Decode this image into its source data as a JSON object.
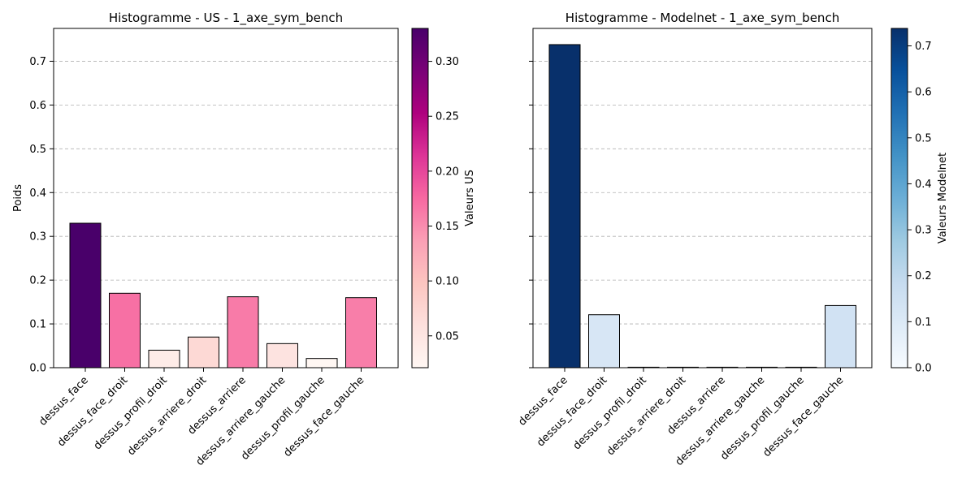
{
  "chart_data": [
    {
      "type": "bar",
      "title": "Histogramme - US - 1_axe_sym_bench",
      "ylabel": "Poids",
      "ylim": [
        0,
        0.775
      ],
      "yticks": [
        "0.0",
        "0.1",
        "0.2",
        "0.3",
        "0.4",
        "0.5",
        "0.6",
        "0.7"
      ],
      "categories": [
        "dessus_face",
        "dessus_face_droit",
        "dessus_profil_droit",
        "dessus_arriere_droit",
        "dessus_arriere",
        "dessus_arriere_gauche",
        "dessus_profil_gauche",
        "dessus_face_gauche"
      ],
      "values": [
        0.33,
        0.17,
        0.04,
        0.07,
        0.162,
        0.055,
        0.021,
        0.16
      ],
      "grid": "y",
      "colorbar": {
        "label": "Valeurs US",
        "colormap": "RdPu",
        "range": [
          0.021,
          0.33
        ],
        "ticks": [
          "0.05",
          "0.10",
          "0.15",
          "0.20",
          "0.25",
          "0.30"
        ]
      }
    },
    {
      "type": "bar",
      "title": "Histogramme - Modelnet - 1_axe_sym_bench",
      "ylabel": "",
      "ylim": [
        0,
        0.775
      ],
      "yticks": [
        "0.0",
        "0.1",
        "0.2",
        "0.3",
        "0.4",
        "0.5",
        "0.6",
        "0.7"
      ],
      "categories": [
        "dessus_face",
        "dessus_face_droit",
        "dessus_profil_droit",
        "dessus_arriere_droit",
        "dessus_arriere",
        "dessus_arriere_gauche",
        "dessus_profil_gauche",
        "dessus_face_gauche"
      ],
      "values": [
        0.738,
        0.121,
        0,
        0,
        0,
        0,
        0,
        0.142
      ],
      "grid": "y",
      "colorbar": {
        "label": "Valeurs Modelnet",
        "colormap": "Blues",
        "range": [
          0,
          0.738
        ],
        "ticks": [
          "0.0",
          "0.1",
          "0.2",
          "0.3",
          "0.4",
          "0.5",
          "0.6",
          "0.7"
        ]
      }
    }
  ]
}
